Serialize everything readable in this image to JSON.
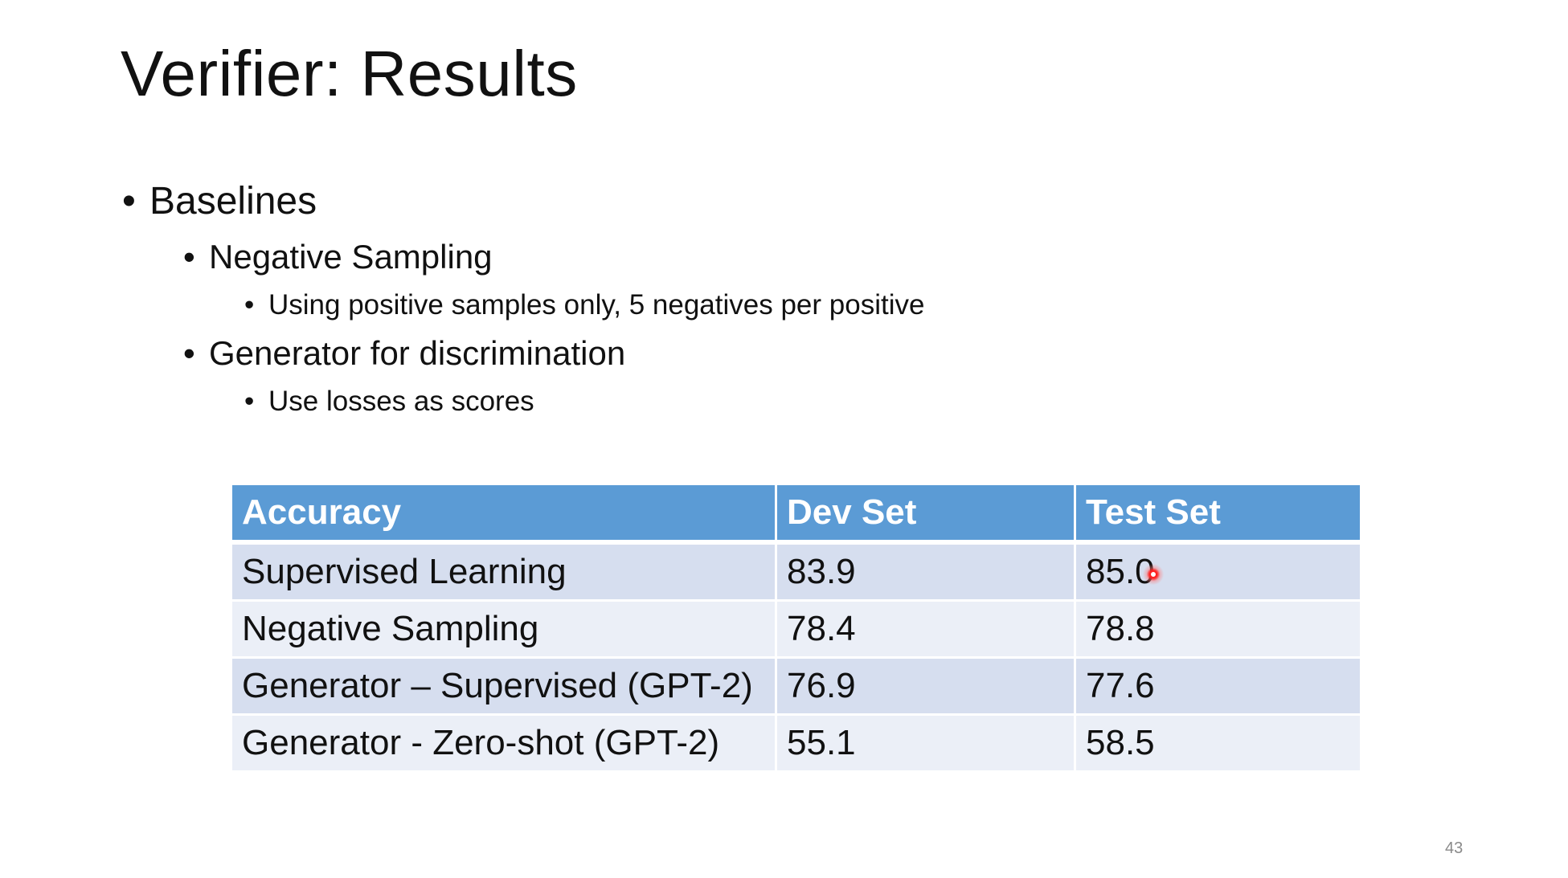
{
  "slide": {
    "title": "Verifier: Results",
    "page_number": "43"
  },
  "bullets": {
    "baselines": "Baselines",
    "negative_sampling": "Negative Sampling",
    "negative_sampling_detail": "Using positive samples only, 5 negatives per positive",
    "generator": "Generator for discrimination",
    "generator_detail": "Use losses as scores",
    "dot": "•"
  },
  "table": {
    "headers": [
      "Accuracy",
      "Dev Set",
      "Test Set"
    ],
    "rows": [
      [
        "Supervised Learning",
        "83.9",
        "85.0"
      ],
      [
        "Negative Sampling",
        "78.4",
        "78.8"
      ],
      [
        "Generator – Supervised (GPT-2)",
        "76.9",
        "77.6"
      ],
      [
        "Generator - Zero-shot (GPT-2)",
        "55.1",
        "58.5"
      ]
    ],
    "header_color": "#5b9bd5",
    "row_colors": [
      "#d6deef",
      "#ebeff7"
    ]
  },
  "pointer": {
    "color": "#ff2020"
  }
}
